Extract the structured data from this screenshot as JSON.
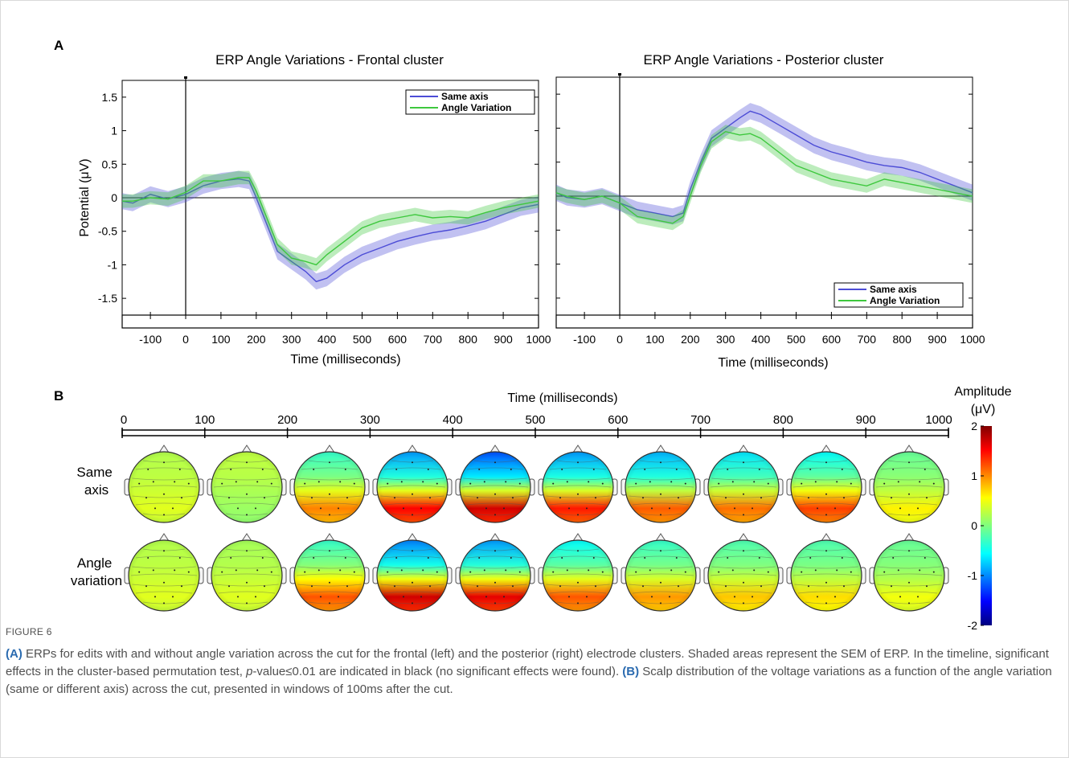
{
  "panelA": {
    "label": "A",
    "plots": [
      {
        "title": "ERP Angle Variations   - Frontal cluster",
        "ylabel": "Potential (μV)",
        "xlabel": "Time (milliseconds)",
        "legend": [
          "Same axis",
          "Angle Variation"
        ],
        "legend_position": "top-right"
      },
      {
        "title": "ERP Angle Variations   - Posterior cluster",
        "ylabel": "",
        "xlabel": "Time (milliseconds)",
        "legend": [
          "Same axis",
          "Angle Variation"
        ],
        "legend_position": "bottom-right"
      }
    ],
    "x_ticks": [
      "-100",
      "0",
      "100",
      "200",
      "300",
      "400",
      "500",
      "600",
      "700",
      "800",
      "900",
      "1000"
    ],
    "y_ticks": [
      "1.5",
      "1",
      "0.5",
      "0",
      "-0.5",
      "-1",
      "-1.5"
    ]
  },
  "panelB": {
    "label": "B",
    "xlabel": "Time (milliseconds)",
    "time_ticks": [
      "0",
      "100",
      "200",
      "300",
      "400",
      "500",
      "600",
      "700",
      "800",
      "900",
      "1000"
    ],
    "rows": [
      "Same\naxis",
      "Angle\nvariation"
    ],
    "colorbar_title": "Amplitude",
    "colorbar_unit": "(μV)",
    "colorbar_ticks": [
      "2",
      "1",
      "0",
      "-1",
      "-2"
    ],
    "colorbar_range": [
      -2,
      2
    ],
    "topo_values": [
      [
        0.2,
        0.25,
        -0.3,
        -0.9,
        -1.2,
        -0.9,
        -0.8,
        -0.6,
        -0.5,
        -0.1
      ],
      [
        0.2,
        0.15,
        -0.3,
        -1.0,
        -0.9,
        -0.5,
        -0.3,
        -0.2,
        -0.2,
        -0.1
      ]
    ],
    "topo_posterior": [
      [
        0.4,
        0.1,
        1.1,
        1.7,
        1.9,
        1.6,
        1.3,
        1.2,
        1.4,
        0.6
      ],
      [
        0.4,
        0.4,
        1.3,
        1.9,
        1.8,
        1.3,
        1.0,
        0.8,
        0.7,
        0.5
      ]
    ]
  },
  "chart_data": [
    {
      "type": "line",
      "title": "ERP Angle Variations   - Frontal cluster",
      "xlabel": "Time (milliseconds)",
      "ylabel": "Potential (μV)",
      "xlim": [
        -180,
        1000
      ],
      "ylim": [
        -1.75,
        1.75
      ],
      "x": [
        -180,
        -150,
        -100,
        -50,
        0,
        50,
        100,
        150,
        180,
        200,
        230,
        260,
        300,
        340,
        370,
        400,
        450,
        500,
        550,
        600,
        650,
        700,
        750,
        800,
        850,
        900,
        950,
        1000
      ],
      "series": [
        {
          "name": "Same axis",
          "color": "#4c4cd6",
          "values": [
            -0.05,
            -0.08,
            0.05,
            -0.02,
            0.05,
            0.18,
            0.25,
            0.28,
            0.25,
            0.0,
            -0.4,
            -0.8,
            -0.95,
            -1.1,
            -1.25,
            -1.2,
            -1.0,
            -0.85,
            -0.75,
            -0.65,
            -0.58,
            -0.52,
            -0.48,
            -0.42,
            -0.35,
            -0.25,
            -0.15,
            -0.1
          ],
          "sem": 0.12
        },
        {
          "name": "Angle Variation",
          "color": "#3ec83e",
          "values": [
            -0.05,
            -0.05,
            0.0,
            -0.02,
            0.08,
            0.25,
            0.25,
            0.3,
            0.3,
            0.1,
            -0.3,
            -0.7,
            -0.9,
            -0.95,
            -1.0,
            -0.85,
            -0.65,
            -0.45,
            -0.35,
            -0.3,
            -0.25,
            -0.3,
            -0.28,
            -0.3,
            -0.22,
            -0.15,
            -0.1,
            -0.05
          ],
          "sem": 0.1
        }
      ]
    },
    {
      "type": "line",
      "title": "ERP Angle Variations   - Posterior cluster",
      "xlabel": "Time (milliseconds)",
      "ylabel": "",
      "xlim": [
        -180,
        1000
      ],
      "ylim": [
        -1.75,
        1.75
      ],
      "x": [
        -180,
        -150,
        -100,
        -50,
        0,
        50,
        100,
        150,
        180,
        200,
        230,
        260,
        300,
        340,
        370,
        400,
        450,
        500,
        550,
        600,
        650,
        700,
        750,
        800,
        850,
        900,
        950,
        1000
      ],
      "series": [
        {
          "name": "Same axis",
          "color": "#4c4cd6",
          "values": [
            0.05,
            -0.02,
            -0.05,
            0.0,
            -0.1,
            -0.2,
            -0.25,
            -0.3,
            -0.25,
            0.1,
            0.5,
            0.85,
            1.0,
            1.15,
            1.25,
            1.2,
            1.05,
            0.9,
            0.75,
            0.65,
            0.58,
            0.5,
            0.45,
            0.42,
            0.35,
            0.25,
            0.15,
            0.05
          ],
          "sem": 0.12
        },
        {
          "name": "Angle Variation",
          "color": "#3ec83e",
          "values": [
            0.05,
            0.0,
            -0.05,
            0.0,
            -0.1,
            -0.3,
            -0.35,
            -0.4,
            -0.3,
            0.0,
            0.45,
            0.8,
            0.95,
            0.9,
            0.92,
            0.85,
            0.65,
            0.45,
            0.35,
            0.25,
            0.2,
            0.15,
            0.25,
            0.2,
            0.15,
            0.1,
            0.05,
            0.0
          ],
          "sem": 0.1
        }
      ]
    }
  ],
  "caption": {
    "figure_label": "FIGURE 6",
    "a_label": "(A)",
    "a_text_1": " ERPs for edits with and without angle variation across the cut for the frontal (left) and the posterior (right) electrode clusters. Shaded areas represent the SEM of ERP. In the timeline, significant effects in the cluster-based permutation test, ",
    "a_p": "p",
    "a_text_2": "-value≤0.01 are indicated in black (no significant effects were found). ",
    "b_label": "(B)",
    "b_text": " Scalp distribution of the voltage variations as a function of the angle variation (same or different axis) across the cut, presented in windows of 100ms after the cut."
  }
}
